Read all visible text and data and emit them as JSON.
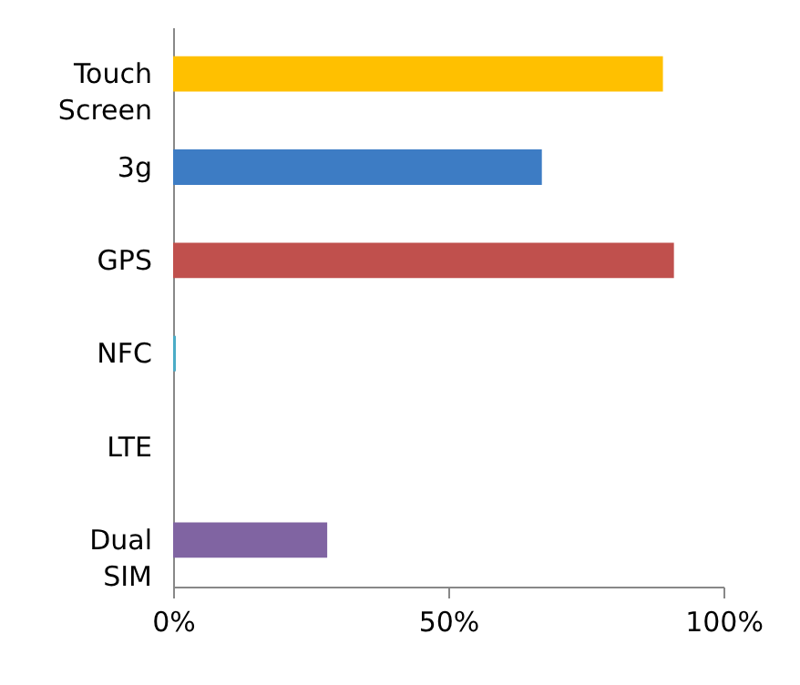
{
  "chart_data": {
    "type": "bar",
    "orientation": "horizontal",
    "categories": [
      "Touch Screen",
      "3g",
      "GPS",
      "NFC",
      "LTE",
      "Dual SIM"
    ],
    "values": [
      89,
      67,
      91,
      0.5,
      0,
      28
    ],
    "colors": [
      "#ffc000",
      "#3d7cc4",
      "#c0504d",
      "#4bacc6",
      "#8064a2",
      "#8064a2"
    ],
    "xlim": [
      0,
      100
    ],
    "xticks": [
      {
        "value": 0,
        "label": "0%"
      },
      {
        "value": 50,
        "label": "50%"
      },
      {
        "value": 100,
        "label": "100%"
      }
    ],
    "grid": false
  }
}
